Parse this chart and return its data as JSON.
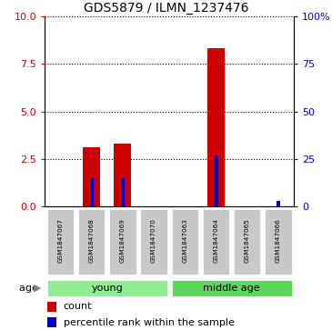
{
  "title": "GDS5879 / ILMN_1237476",
  "samples": [
    "GSM1847067",
    "GSM1847068",
    "GSM1847069",
    "GSM1847070",
    "GSM1847063",
    "GSM1847064",
    "GSM1847065",
    "GSM1847066"
  ],
  "count_values": [
    0,
    3.1,
    3.3,
    0,
    0,
    8.35,
    0,
    0
  ],
  "percentile_values": [
    0,
    15,
    15,
    0,
    0,
    27,
    0,
    3
  ],
  "left_ylim": [
    0,
    10
  ],
  "right_ylim": [
    0,
    100
  ],
  "left_yticks": [
    0,
    2.5,
    5,
    7.5,
    10
  ],
  "right_yticks": [
    0,
    25,
    50,
    75,
    100
  ],
  "right_yticklabels": [
    "0",
    "25",
    "50",
    "75",
    "100%"
  ],
  "count_bar_width": 0.55,
  "percentile_bar_width": 0.12,
  "count_color": "#CC0000",
  "percentile_color": "#0000CC",
  "sample_box_color": "#C8C8C8",
  "group_young_color": "#90EE90",
  "group_middle_color": "#5CD65C",
  "group_label": "age",
  "groups": [
    {
      "name": "young",
      "start": 0,
      "end": 3
    },
    {
      "name": "middle age",
      "start": 4,
      "end": 7
    }
  ],
  "legend_count": "count",
  "legend_percentile": "percentile rank within the sample"
}
